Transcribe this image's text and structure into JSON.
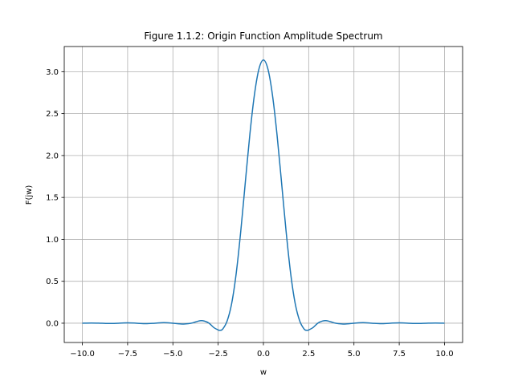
{
  "chart_data": {
    "type": "line",
    "title": "Figure 1.1.2: Origin Function Amplitude Spectrum",
    "xlabel": "w",
    "ylabel": "F(jw)",
    "xlim": [
      -11.0,
      11.0
    ],
    "ylim": [
      -0.23,
      3.3
    ],
    "xticks": [
      -10.0,
      -7.5,
      -5.0,
      -2.5,
      0.0,
      2.5,
      5.0,
      7.5,
      10.0
    ],
    "xtick_labels": [
      "−10.0",
      "−7.5",
      "−5.0",
      "−2.5",
      "0.0",
      "2.5",
      "5.0",
      "7.5",
      "10.0"
    ],
    "yticks": [
      0.0,
      0.5,
      1.0,
      1.5,
      2.0,
      2.5,
      3.0
    ],
    "ytick_labels": [
      "0.0",
      "0.5",
      "1.0",
      "1.5",
      "2.0",
      "2.5",
      "3.0"
    ],
    "grid": true,
    "legend": null,
    "line_color": "#1f77b4",
    "series": [
      {
        "name": "",
        "x": [
          -10.0,
          -9.5,
          -9.0,
          -8.5,
          -8.0,
          -7.5,
          -7.0,
          -6.5,
          -6.0,
          -5.5,
          -5.0,
          -4.5,
          -4.0,
          -3.75,
          -3.5,
          -3.25,
          -3.0,
          -2.75,
          -2.5,
          -2.4,
          -2.25,
          -2.0,
          -1.75,
          -1.5,
          -1.25,
          -1.0,
          -0.75,
          -0.5,
          -0.25,
          0.0,
          0.25,
          0.5,
          0.75,
          1.0,
          1.25,
          1.5,
          1.75,
          2.0,
          2.25,
          2.4,
          2.5,
          2.75,
          3.0,
          3.25,
          3.5,
          3.75,
          4.0,
          4.5,
          5.0,
          5.5,
          6.0,
          6.5,
          7.0,
          7.5,
          8.0,
          8.5,
          9.0,
          9.5,
          10.0
        ],
        "y": [
          0.0,
          0.002,
          0.0,
          -0.003,
          0.0,
          0.004,
          0.0,
          -0.005,
          0.0,
          0.007,
          0.0,
          -0.01,
          0.0,
          0.015,
          0.03,
          0.025,
          0.0,
          -0.05,
          -0.08,
          -0.085,
          -0.07,
          0.03,
          0.24,
          0.6,
          1.1,
          1.68,
          2.25,
          2.72,
          3.03,
          3.14,
          3.03,
          2.72,
          2.25,
          1.68,
          1.1,
          0.6,
          0.24,
          0.03,
          -0.07,
          -0.085,
          -0.08,
          -0.05,
          0.0,
          0.025,
          0.03,
          0.015,
          0.0,
          -0.01,
          0.0,
          0.007,
          0.0,
          -0.005,
          0.0,
          0.004,
          0.0,
          -0.003,
          0.0,
          0.002,
          0.0
        ]
      }
    ]
  }
}
